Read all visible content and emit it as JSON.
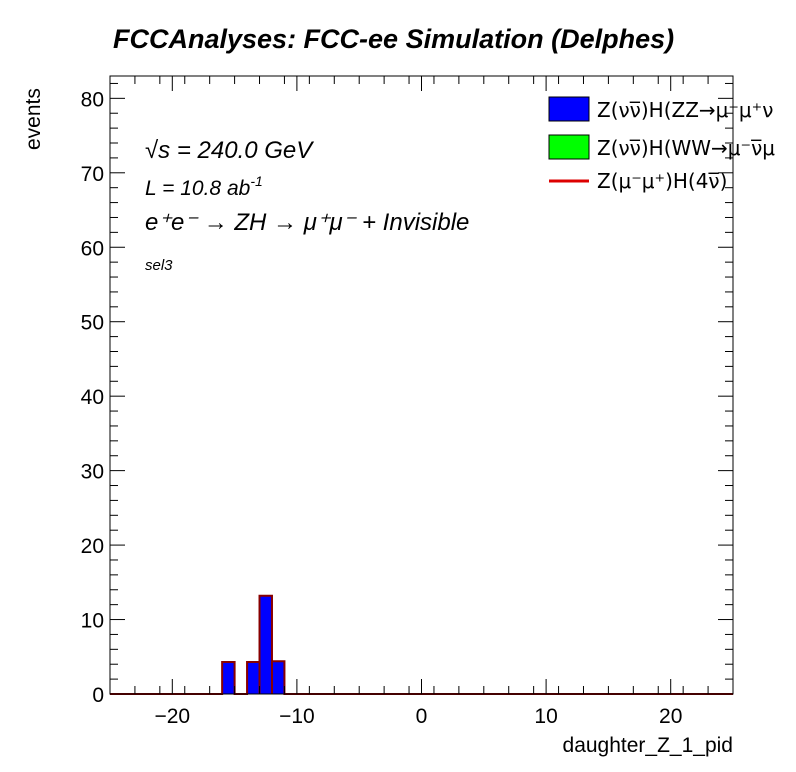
{
  "chart_data": {
    "type": "bar",
    "title": "FCCAnalyses: FCC-ee Simulation (Delphes)",
    "xlabel": "daughter_Z_1_pid",
    "ylabel": "events",
    "xlim": [
      -25,
      25
    ],
    "ylim": [
      0,
      83
    ],
    "x_ticks": [
      -20,
      -10,
      0,
      10,
      20
    ],
    "y_ticks": [
      0,
      10,
      20,
      30,
      40,
      50,
      60,
      70,
      80
    ],
    "bin_width": 1,
    "grid": false,
    "legend_position": "top-right",
    "series": [
      {
        "name": "Z(νν̅)H(ZZ→μ⁻μ⁺ν",
        "style": "filled",
        "color": "#0000ff",
        "bins": [
          {
            "x0": -16,
            "x1": -15,
            "value": 4.3
          },
          {
            "x0": -14,
            "x1": -13,
            "value": 4.3
          },
          {
            "x0": -13,
            "x1": -12,
            "value": 13.2
          },
          {
            "x0": -12,
            "x1": -11,
            "value": 4.4
          }
        ]
      },
      {
        "name": "Z(νν̅)H(WW→μ⁻ν̅μ",
        "style": "filled",
        "color": "#00ff00",
        "bins": []
      },
      {
        "name": "Z(μ⁻μ⁺)H(4ν̅)",
        "style": "line",
        "color": "#dd0000",
        "bins": []
      }
    ],
    "annotations": {
      "sqrt_s": "√s = 240.0 GeV",
      "lumi_base": "L = 10.8 ab",
      "lumi_exp": "-1",
      "process": "e⁺e⁻ → ZH → μ⁺μ⁻ + Invisible",
      "selection": "sel3"
    }
  }
}
